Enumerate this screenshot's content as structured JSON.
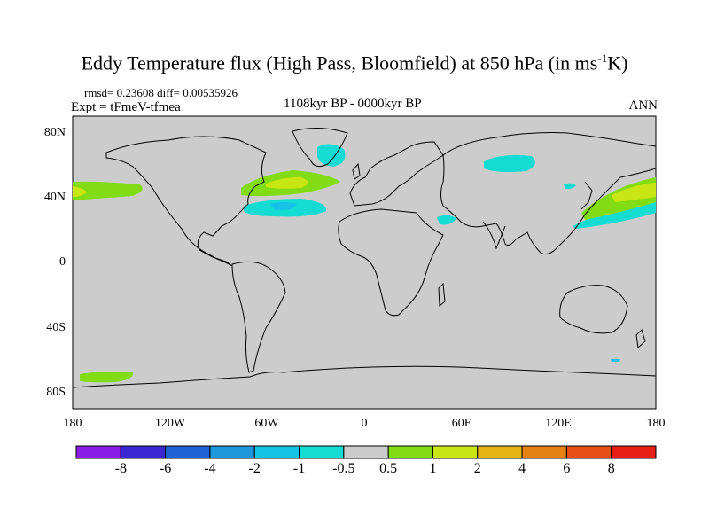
{
  "title_main": "Eddy Temperature flux (High Pass, Bloomfield) at 850 hPa (in ms",
  "title_sup": "-1",
  "title_end": "K)",
  "stats": "rmsd= 0.23608 diff= 0.00535926",
  "experiment": "Expt = tFmeV-tfmea",
  "period": "1108kyr BP - 0000kyr BP",
  "season": "ANN",
  "lat_ticks": [
    {
      "label": "80N",
      "lat": 80
    },
    {
      "label": "40N",
      "lat": 40
    },
    {
      "label": "0",
      "lat": 0
    },
    {
      "label": "40S",
      "lat": -40
    },
    {
      "label": "80S",
      "lat": -80
    }
  ],
  "lon_ticks": [
    {
      "label": "180",
      "lon": -180
    },
    {
      "label": "120W",
      "lon": -120
    },
    {
      "label": "60W",
      "lon": -60
    },
    {
      "label": "0",
      "lon": 0
    },
    {
      "label": "60E",
      "lon": 60
    },
    {
      "label": "120E",
      "lon": 120
    },
    {
      "label": "180",
      "lon": 180
    }
  ],
  "colorbar": {
    "colors": [
      "#8a1ee6",
      "#3c28d2",
      "#1e64d7",
      "#1e96dc",
      "#14c3e6",
      "#14dcd2",
      "#cccccc",
      "#82dc14",
      "#c8e614",
      "#e6b414",
      "#e68214",
      "#e65014",
      "#e61e14"
    ],
    "labels": [
      "-8",
      "-6",
      "-4",
      "-2",
      "-1",
      "-0.5",
      "0.5",
      "1",
      "2",
      "4",
      "6",
      "8"
    ]
  },
  "colors": {
    "land_ocean": "#cccccc",
    "coast": "#000000"
  }
}
